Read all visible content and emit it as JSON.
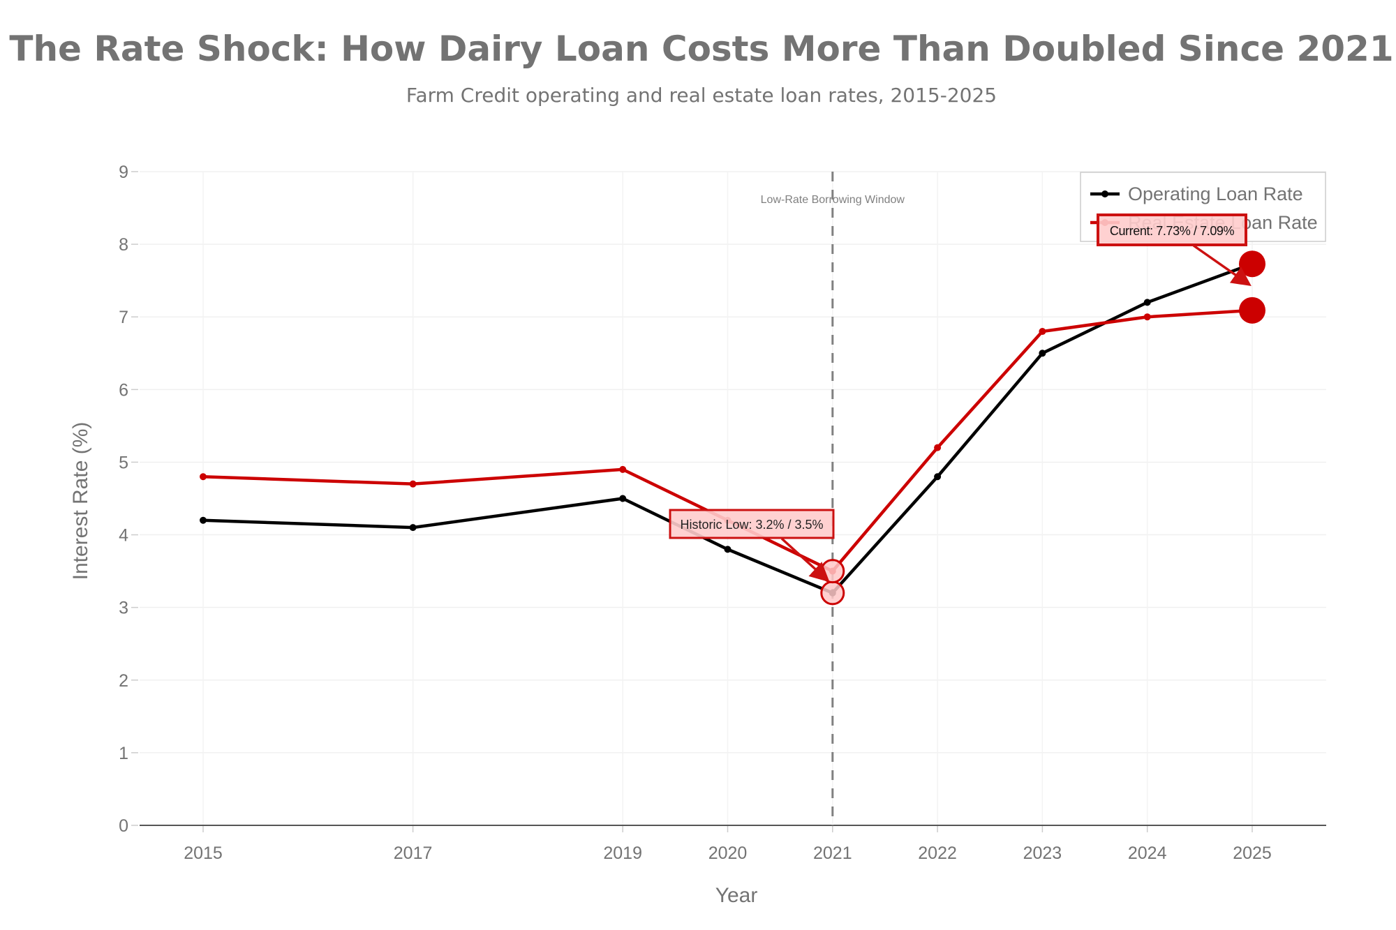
{
  "chart_data": {
    "type": "line",
    "title": "The Rate Shock: How Dairy Loan Costs More Than Doubled Since 2021",
    "subtitle": "Farm Credit operating and real estate loan rates, 2015-2025",
    "xlabel": "Year",
    "ylabel": "Interest Rate (%)",
    "x": [
      2015,
      2017,
      2019,
      2020,
      2021,
      2022,
      2023,
      2024,
      2025
    ],
    "x_tick_labels": [
      "2015",
      "2017",
      "2019",
      "2020",
      "2021",
      "2022",
      "2023",
      "2024",
      "2025"
    ],
    "xlim": [
      2014.4,
      2025.7
    ],
    "ylim": [
      0,
      9
    ],
    "y_ticks": [
      0,
      1,
      2,
      3,
      4,
      5,
      6,
      7,
      8,
      9
    ],
    "y_tick_labels": [
      "0",
      "1",
      "2",
      "3",
      "4",
      "5",
      "6",
      "7",
      "8",
      "9"
    ],
    "grid": true,
    "legend_position": "top-right",
    "series": [
      {
        "name": "Operating Loan Rate",
        "color": "#000000",
        "values": [
          4.2,
          4.1,
          4.5,
          3.8,
          3.2,
          4.8,
          6.5,
          7.2,
          7.73
        ]
      },
      {
        "name": "Real Estate Loan Rate",
        "color": "#cc0000",
        "values": [
          4.8,
          4.7,
          4.9,
          4.2,
          3.5,
          5.2,
          6.8,
          7.0,
          7.09
        ]
      }
    ],
    "reference_line": {
      "x": 2021,
      "style": "dashed",
      "color": "#808080",
      "label": "Low-Rate Borrowing Window"
    },
    "annotations": [
      {
        "text": "Historic Low: 3.2% / 3.5%",
        "target_x": 2021,
        "target_y": 3.35,
        "highlight_points": [
          {
            "x": 2021,
            "y": 3.2
          },
          {
            "x": 2021,
            "y": 3.5
          }
        ],
        "highlight_style": "hollow"
      },
      {
        "text": "Current: 7.73% / 7.09%",
        "target_x": 2025,
        "target_y": 7.4,
        "highlight_points": [
          {
            "x": 2025,
            "y": 7.73
          },
          {
            "x": 2025,
            "y": 7.09
          }
        ],
        "highlight_style": "filled"
      }
    ],
    "colors": {
      "accent_red": "#cc0000",
      "annotation_fill": "#ffcccc",
      "annotation_border": "#cc1111",
      "text_gray": "#737373"
    }
  }
}
